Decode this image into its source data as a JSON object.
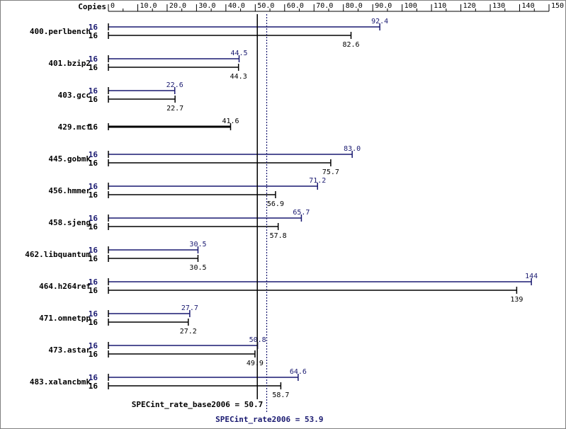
{
  "chart_data": {
    "type": "bar",
    "orientation": "horizontal",
    "copies_header": "Copies",
    "xlim": [
      0,
      150
    ],
    "ticks": [
      "0",
      "10.0",
      "20.0",
      "30.0",
      "40.0",
      "50.0",
      "60.0",
      "70.0",
      "80.0",
      "90.0",
      "100",
      "110",
      "120",
      "130",
      "140",
      "150"
    ],
    "categories": [
      "400.perlbench",
      "401.bzip2",
      "403.gcc",
      "429.mcf",
      "445.gobmk",
      "456.hmmer",
      "458.sjeng",
      "462.libquantum",
      "464.h264ref",
      "471.omnetpp",
      "473.astar",
      "483.xalancbmk"
    ],
    "series": [
      {
        "key": "peak",
        "color": "#191970",
        "copies": [
          "16",
          "16",
          "16",
          "",
          "16",
          "16",
          "16",
          "16",
          "16",
          "16",
          "16",
          "16"
        ],
        "values": [
          92.4,
          44.5,
          22.6,
          null,
          83.0,
          71.2,
          65.7,
          30.5,
          144,
          27.7,
          50.8,
          64.6
        ],
        "labels": [
          "92.4",
          "44.5",
          "22.6",
          "",
          "83.0",
          "71.2",
          "65.7",
          "30.5",
          "144",
          "27.7",
          "50.8",
          "64.6"
        ]
      },
      {
        "key": "base",
        "color": "#000000",
        "copies": [
          "16",
          "16",
          "16",
          "16",
          "16",
          "16",
          "16",
          "16",
          "16",
          "16",
          "16",
          "16"
        ],
        "values": [
          82.6,
          44.3,
          22.7,
          41.6,
          75.7,
          56.9,
          57.8,
          30.5,
          139,
          27.2,
          49.9,
          58.7
        ],
        "labels": [
          "82.6",
          "44.3",
          "22.7",
          "41.6",
          "75.7",
          "56.9",
          "57.8",
          "30.5",
          "139",
          "27.2",
          "49.9",
          "58.7"
        ]
      }
    ],
    "reference_lines": [
      {
        "key": "base",
        "value": 50.7,
        "label": "SPECint_rate_base2006 = 50.7",
        "color": "#000000",
        "style": "solid"
      },
      {
        "key": "peak",
        "value": 53.9,
        "label": "SPECint_rate2006 = 53.9",
        "color": "#191970",
        "style": "dotted"
      }
    ]
  }
}
